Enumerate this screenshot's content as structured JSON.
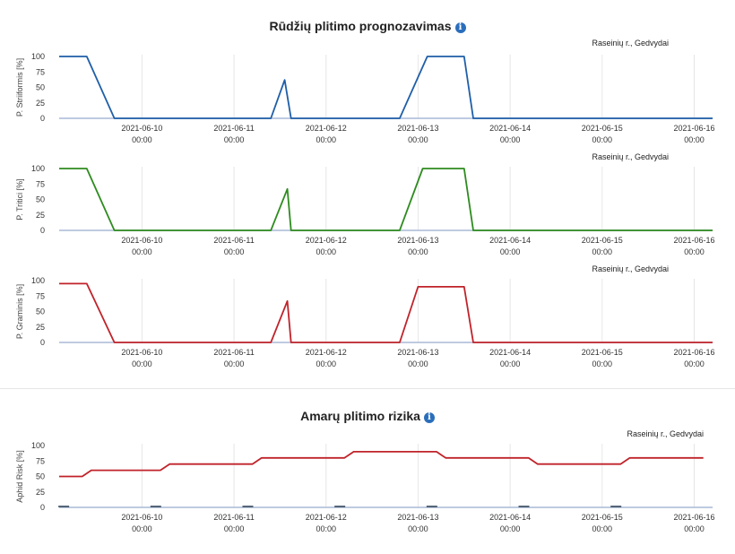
{
  "rust_section": {
    "title": "Rūdžių plitimo prognozavimas"
  },
  "aphid_section": {
    "title": "Amarų plitimo rizika"
  },
  "x_ticks": [
    [
      "2021-06-10",
      "00:00"
    ],
    [
      "2021-06-11",
      "00:00"
    ],
    [
      "2021-06-12",
      "00:00"
    ],
    [
      "2021-06-13",
      "00:00"
    ],
    [
      "2021-06-14",
      "00:00"
    ],
    [
      "2021-06-15",
      "00:00"
    ],
    [
      "2021-06-16",
      "00:00"
    ]
  ],
  "colors": {
    "blue": "#1f5fa8",
    "green": "#2e8b1f",
    "red": "#c0232a",
    "axis": "#a9b8d6",
    "grid": "#e6e6e6"
  },
  "chart_data": [
    {
      "type": "line",
      "location": "Raseinių r., Gedvydai",
      "ylabel": "P. Striiformis [%]",
      "ylim": [
        0,
        100
      ],
      "yticks": [
        0,
        25,
        50,
        75,
        100
      ],
      "xlim": [
        -0.9,
        6.2
      ],
      "series": [
        {
          "color": "#1f5fa8",
          "x": [
            -0.9,
            -0.6,
            -0.3,
            1.4,
            1.55,
            1.62,
            2.8,
            3.1,
            3.5,
            3.6,
            6.2
          ],
          "y": [
            100,
            100,
            0,
            0,
            62,
            0,
            0,
            100,
            100,
            0,
            0
          ]
        }
      ]
    },
    {
      "type": "line",
      "location": "Raseinių r., Gedvydai",
      "ylabel": "P. Tritici [%]",
      "ylim": [
        0,
        100
      ],
      "yticks": [
        0,
        25,
        50,
        75,
        100
      ],
      "xlim": [
        -0.9,
        6.2
      ],
      "series": [
        {
          "color": "#2e8b1f",
          "x": [
            -0.9,
            -0.6,
            -0.3,
            1.4,
            1.58,
            1.62,
            2.8,
            3.05,
            3.5,
            3.6,
            6.2
          ],
          "y": [
            100,
            100,
            0,
            0,
            67,
            0,
            0,
            100,
            100,
            0,
            0
          ]
        }
      ]
    },
    {
      "type": "line",
      "location": "Raseinių r., Gedvydai",
      "ylabel": "P. Graminis [%]",
      "ylim": [
        0,
        100
      ],
      "yticks": [
        0,
        25,
        50,
        75,
        100
      ],
      "xlim": [
        -0.9,
        6.2
      ],
      "series": [
        {
          "color": "#c0232a",
          "x": [
            -0.9,
            -0.6,
            -0.3,
            1.4,
            1.58,
            1.62,
            2.8,
            3.0,
            3.5,
            3.6,
            6.2
          ],
          "y": [
            95,
            95,
            0,
            0,
            67,
            0,
            0,
            90,
            90,
            0,
            0
          ]
        }
      ]
    },
    {
      "type": "line",
      "location": "Raseinių r., Gedvydai",
      "ylabel": "Aphid Risk [%]",
      "ylim": [
        0,
        100
      ],
      "yticks": [
        0,
        25,
        50,
        75,
        100
      ],
      "xlim": [
        -0.9,
        6.2
      ],
      "series": [
        {
          "color": "#c0232a",
          "x": [
            -0.9,
            -0.65,
            -0.55,
            0.2,
            0.3,
            1.2,
            1.3,
            2.2,
            2.3,
            3.2,
            3.3,
            4.2,
            4.3,
            5.2,
            5.3,
            6.1
          ],
          "y": [
            50,
            50,
            60,
            60,
            70,
            70,
            80,
            80,
            90,
            90,
            80,
            80,
            70,
            70,
            80,
            80
          ]
        }
      ]
    }
  ]
}
